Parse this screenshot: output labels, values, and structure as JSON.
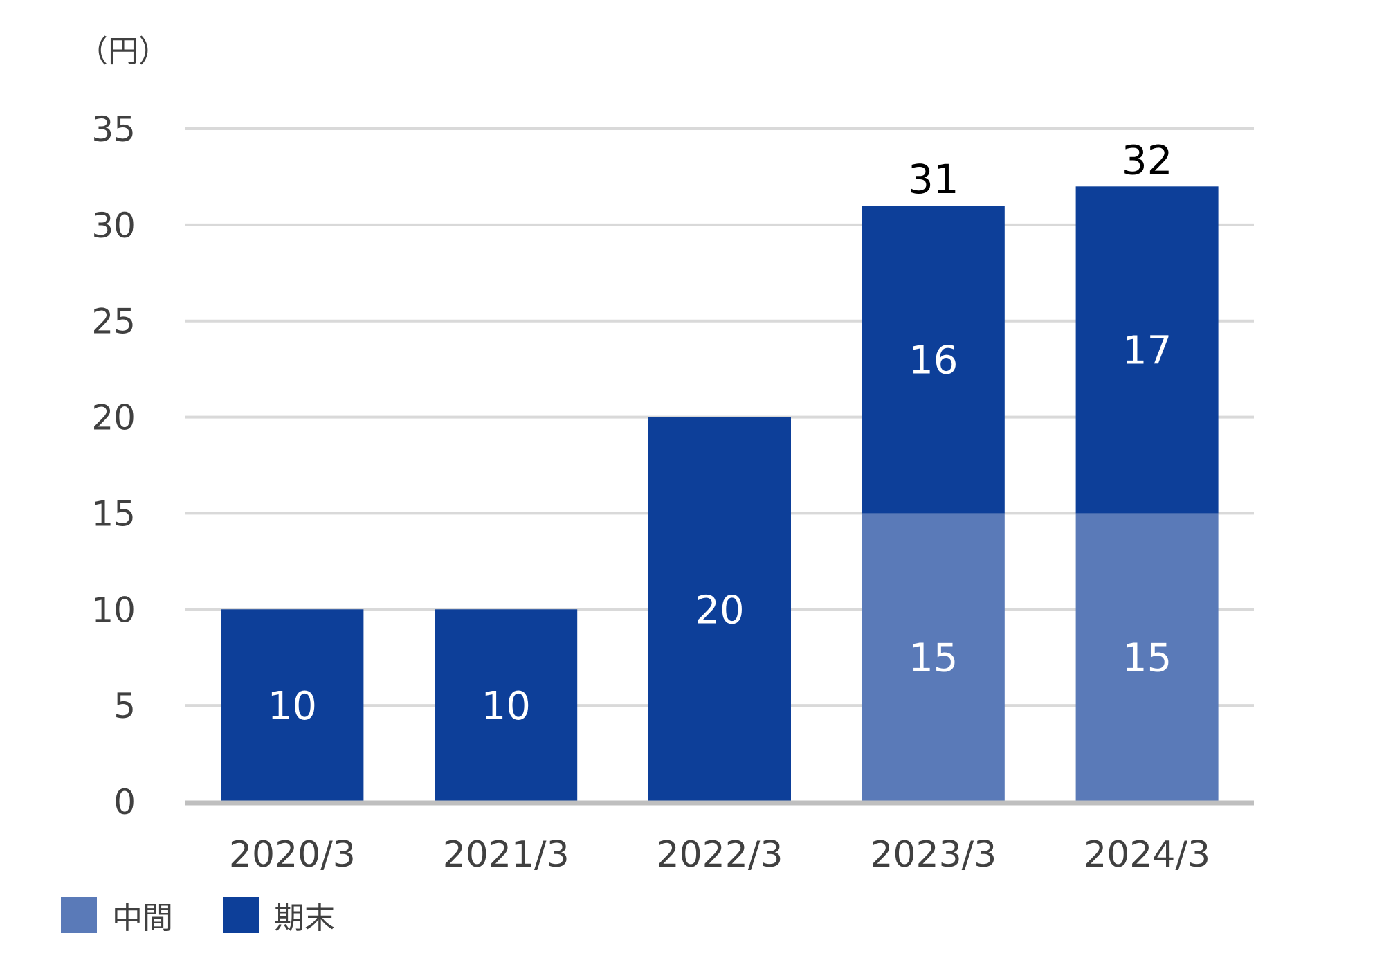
{
  "chart_data": {
    "type": "bar",
    "stacked": true,
    "unit_label": "（円）",
    "categories": [
      "2020/3",
      "2021/3",
      "2022/3",
      "2023/3",
      "2024/3"
    ],
    "series": [
      {
        "name": "中間",
        "color": "#5a7ab8",
        "values": [
          null,
          null,
          null,
          15,
          15
        ]
      },
      {
        "name": "期末",
        "color": "#0d3f99",
        "values": [
          10,
          10,
          20,
          16,
          17
        ]
      }
    ],
    "totals": [
      null,
      null,
      null,
      31,
      32
    ],
    "ylim": [
      0,
      35
    ],
    "yticks": [
      0,
      5,
      10,
      15,
      20,
      25,
      30,
      35
    ],
    "grid": true,
    "legend_position": "bottom-left",
    "gridline_color": "#d9d9d9",
    "baseline_color": "#bfbfbf"
  }
}
